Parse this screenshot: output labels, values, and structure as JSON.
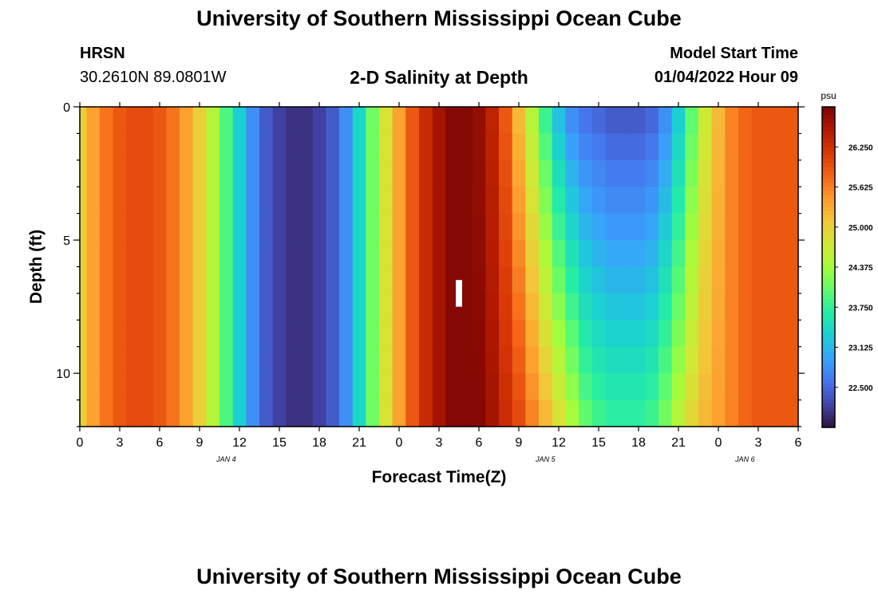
{
  "header": {
    "title": "University of Southern Mississippi Ocean Cube",
    "station": "HRSN",
    "coords": "30.2610N  89.0801W",
    "subtitle": "2-D Salinity at Depth",
    "model_start_label": "Model Start Time",
    "model_start_value": "01/04/2022 Hour 09"
  },
  "footer": {
    "title": "University of Southern Mississippi Ocean Cube"
  },
  "chart_data": {
    "type": "heatmap",
    "variable": "Salinity",
    "xlabel": "Forecast Time(Z)",
    "ylabel": "Depth (ft)",
    "x_ticks": [
      "0",
      "3",
      "6",
      "9",
      "12",
      "15",
      "18",
      "21",
      "0",
      "3",
      "6",
      "9",
      "12",
      "15",
      "18",
      "21",
      "0",
      "3",
      "6"
    ],
    "x_hours": [
      0,
      3,
      6,
      9,
      12,
      15,
      18,
      21,
      24,
      27,
      30,
      33,
      36,
      39,
      42,
      45,
      48,
      51,
      54
    ],
    "day_labels": [
      {
        "label": "JAN 4",
        "hour": 11
      },
      {
        "label": "JAN 5",
        "hour": 35
      },
      {
        "label": "JAN 6",
        "hour": 50
      }
    ],
    "xlim": [
      0,
      54
    ],
    "y_ticks": [
      "0",
      "5",
      "10"
    ],
    "y_tick_values": [
      0,
      5,
      10
    ],
    "ylim": [
      0,
      12
    ],
    "y_reversed": true,
    "colorbar": {
      "unit": "psu",
      "min": 21.875,
      "max": 26.875,
      "tick_labels": [
        "26.250",
        "25.625",
        "25.000",
        "24.375",
        "23.750",
        "23.125",
        "22.500"
      ],
      "tick_values": [
        26.25,
        25.625,
        25.0,
        24.375,
        23.75,
        23.125,
        22.5
      ],
      "colors": [
        "#30123b",
        "#4145ab",
        "#4675ed",
        "#39a2fc",
        "#1bcfd4",
        "#24eca6",
        "#61fc6c",
        "#a4fc3b",
        "#d1e834",
        "#f3c63a",
        "#fe9b2d",
        "#f36315",
        "#d93806",
        "#b11901",
        "#7a0403"
      ]
    },
    "grid": false,
    "marker": {
      "hour": 28.5,
      "depth_from": 6.5,
      "depth_to": 7.5
    },
    "time_hours": [
      0,
      1,
      2,
      3,
      4,
      5,
      6,
      7,
      8,
      9,
      10,
      11,
      12,
      13,
      14,
      15,
      16,
      17,
      18,
      19,
      20,
      21,
      22,
      23,
      24,
      25,
      26,
      27,
      28,
      29,
      30,
      31,
      32,
      33,
      34,
      35,
      36,
      37,
      38,
      39,
      40,
      41,
      42,
      43,
      44,
      45,
      46,
      47,
      48,
      49,
      50,
      51,
      52,
      53,
      54
    ],
    "depth_levels": [
      0.5,
      1.5,
      2.5,
      3.5,
      4.5,
      5.5,
      6.5,
      7.5,
      8.5,
      9.5,
      10.5,
      11.5
    ],
    "surface_salinity": [
      25.0,
      25.4,
      25.7,
      25.9,
      26.0,
      26.0,
      25.9,
      25.7,
      25.4,
      25.0,
      24.5,
      23.9,
      23.3,
      22.8,
      22.4,
      22.2,
      22.1,
      22.1,
      22.2,
      22.4,
      22.8,
      23.4,
      24.1,
      24.8,
      25.4,
      25.9,
      26.3,
      26.6,
      26.8,
      26.8,
      26.7,
      26.4,
      25.9,
      25.2,
      24.5,
      23.8,
      23.2,
      22.8,
      22.6,
      22.5,
      22.4,
      22.4,
      22.4,
      22.5,
      22.8,
      23.3,
      24.0,
      24.7,
      25.2,
      25.6,
      25.8,
      25.9,
      25.9,
      25.9,
      25.9
    ],
    "bottom_salinity": [
      25.0,
      25.4,
      25.7,
      25.9,
      26.0,
      26.0,
      25.9,
      25.7,
      25.4,
      25.0,
      24.5,
      23.9,
      23.3,
      22.8,
      22.4,
      22.2,
      22.1,
      22.1,
      22.2,
      22.4,
      22.8,
      23.4,
      24.1,
      24.8,
      25.4,
      25.9,
      26.3,
      26.6,
      26.8,
      26.8,
      26.8,
      26.6,
      26.3,
      26.0,
      25.6,
      25.2,
      24.8,
      24.4,
      24.0,
      23.8,
      23.7,
      23.7,
      23.7,
      23.8,
      24.1,
      24.5,
      24.9,
      25.2,
      25.4,
      25.6,
      25.8,
      25.9,
      25.9,
      25.9,
      25.9
    ]
  }
}
